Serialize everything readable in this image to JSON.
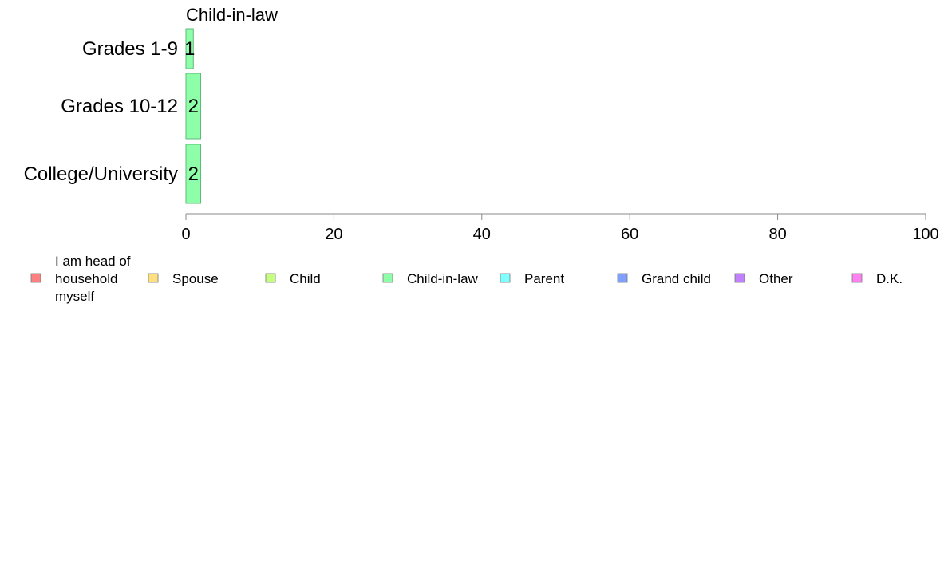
{
  "chart_data": {
    "type": "bar",
    "orientation": "horizontal",
    "title": "Child-in-law",
    "categories": [
      "Grades 1-9",
      "Grades 10-12",
      "College/University"
    ],
    "series": [
      {
        "name": "Child-in-law",
        "values": [
          1,
          2,
          2
        ],
        "labels": [
          "1",
          "2",
          "2"
        ],
        "color": "#8effa8"
      }
    ],
    "xlim": [
      0,
      100
    ],
    "xticks": [
      "0",
      "20",
      "40",
      "60",
      "80",
      "100"
    ],
    "grid": false,
    "legend_position": "bottom",
    "legend": [
      {
        "label": "I am head of household myself",
        "color": "#ff8080"
      },
      {
        "label": "Spouse",
        "color": "#ffe080"
      },
      {
        "label": "Child",
        "color": "#c6ff80"
      },
      {
        "label": "Child-in-law",
        "color": "#8effa8"
      },
      {
        "label": "Parent",
        "color": "#80ffff"
      },
      {
        "label": "Grand child",
        "color": "#80a0ff"
      },
      {
        "label": "Other",
        "color": "#c080ff"
      },
      {
        "label": "D.K.",
        "color": "#ff80f0"
      }
    ]
  }
}
